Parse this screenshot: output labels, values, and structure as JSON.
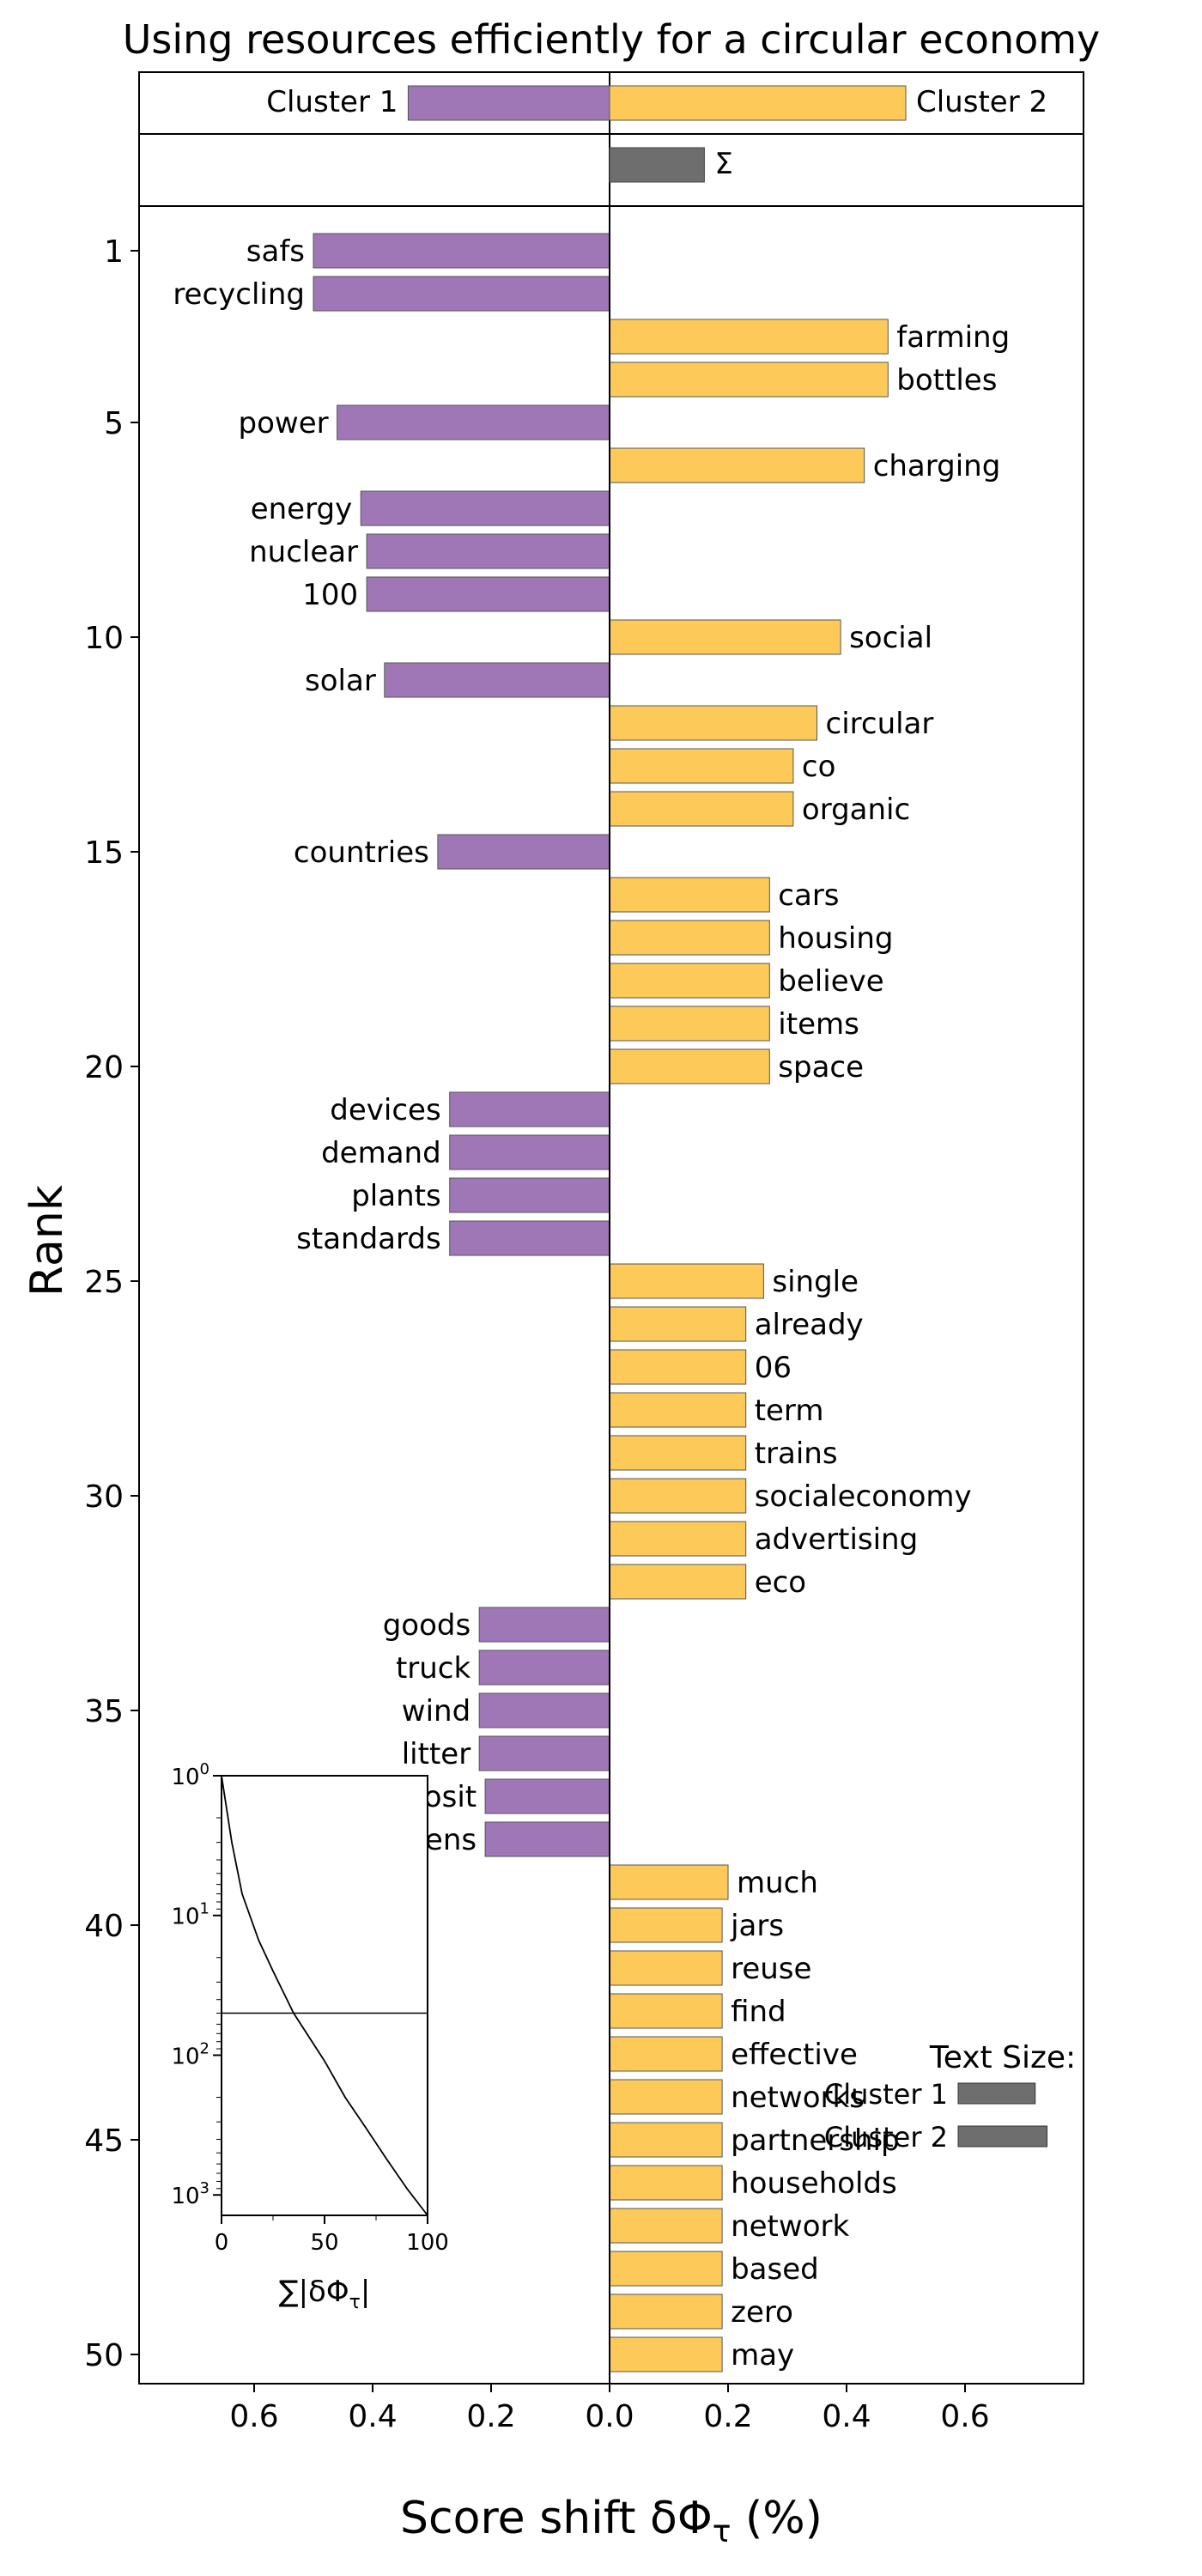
{
  "chart_data": {
    "type": "bar",
    "orientation": "horizontal",
    "title": "Using resources efficiently for a circular economy",
    "xlabel": "Score shift δΦ_τ (%)",
    "ylabel": "Rank",
    "xlim": [
      -0.8,
      0.8
    ],
    "xticks": [
      "0.6",
      "0.4",
      "0.2",
      "0.0",
      "0.2",
      "0.4",
      "0.6"
    ],
    "xtick_values": [
      -0.6,
      -0.4,
      -0.2,
      0.0,
      0.2,
      0.4,
      0.6
    ],
    "yticks": [
      "1",
      "5",
      "10",
      "15",
      "20",
      "25",
      "30",
      "35",
      "40",
      "45",
      "50"
    ],
    "ytick_values": [
      1,
      5,
      10,
      15,
      20,
      25,
      30,
      35,
      40,
      45,
      50
    ],
    "colors": {
      "cluster1": "#9f77b7",
      "cluster2": "#fdca5a",
      "sum": "#6e6e6e"
    },
    "legend_top": {
      "cluster1": "Cluster 1",
      "cluster2": "Cluster 2",
      "cluster1_value": -0.34,
      "cluster2_value": 0.5
    },
    "sum_bar": {
      "label": "Σ",
      "value": 0.16
    },
    "series": [
      {
        "rank": 1,
        "word": "safs",
        "value": -0.5
      },
      {
        "rank": 2,
        "word": "recycling",
        "value": -0.5
      },
      {
        "rank": 3,
        "word": "farming",
        "value": 0.47
      },
      {
        "rank": 4,
        "word": "bottles",
        "value": 0.47
      },
      {
        "rank": 5,
        "word": "power",
        "value": -0.46
      },
      {
        "rank": 6,
        "word": "charging",
        "value": 0.43
      },
      {
        "rank": 7,
        "word": "energy",
        "value": -0.42
      },
      {
        "rank": 8,
        "word": "nuclear",
        "value": -0.41
      },
      {
        "rank": 9,
        "word": "100",
        "value": -0.41
      },
      {
        "rank": 10,
        "word": "social",
        "value": 0.39
      },
      {
        "rank": 11,
        "word": "solar",
        "value": -0.38
      },
      {
        "rank": 12,
        "word": "circular",
        "value": 0.35
      },
      {
        "rank": 13,
        "word": "co",
        "value": 0.31
      },
      {
        "rank": 14,
        "word": "organic",
        "value": 0.31
      },
      {
        "rank": 15,
        "word": "countries",
        "value": -0.29
      },
      {
        "rank": 16,
        "word": "cars",
        "value": 0.27
      },
      {
        "rank": 17,
        "word": "housing",
        "value": 0.27
      },
      {
        "rank": 18,
        "word": "believe",
        "value": 0.27
      },
      {
        "rank": 19,
        "word": "items",
        "value": 0.27
      },
      {
        "rank": 20,
        "word": "space",
        "value": 0.27
      },
      {
        "rank": 21,
        "word": "devices",
        "value": -0.27
      },
      {
        "rank": 22,
        "word": "demand",
        "value": -0.27
      },
      {
        "rank": 23,
        "word": "plants",
        "value": -0.27
      },
      {
        "rank": 24,
        "word": "standards",
        "value": -0.27
      },
      {
        "rank": 25,
        "word": "single",
        "value": 0.26
      },
      {
        "rank": 26,
        "word": "already",
        "value": 0.23
      },
      {
        "rank": 27,
        "word": "06",
        "value": 0.23
      },
      {
        "rank": 28,
        "word": "term",
        "value": 0.23
      },
      {
        "rank": 29,
        "word": "trains",
        "value": 0.23
      },
      {
        "rank": 30,
        "word": "socialeconomy",
        "value": 0.23
      },
      {
        "rank": 31,
        "word": "advertising",
        "value": 0.23
      },
      {
        "rank": 32,
        "word": "eco",
        "value": 0.23
      },
      {
        "rank": 33,
        "word": "goods",
        "value": -0.22
      },
      {
        "rank": 34,
        "word": "truck",
        "value": -0.22
      },
      {
        "rank": 35,
        "word": "wind",
        "value": -0.22
      },
      {
        "rank": 36,
        "word": "litter",
        "value": -0.22
      },
      {
        "rank": 37,
        "word": "deposit",
        "value": -0.21
      },
      {
        "rank": 38,
        "word": "citizens",
        "value": -0.21
      },
      {
        "rank": 39,
        "word": "much",
        "value": 0.2
      },
      {
        "rank": 40,
        "word": "jars",
        "value": 0.19
      },
      {
        "rank": 41,
        "word": "reuse",
        "value": 0.19
      },
      {
        "rank": 42,
        "word": "find",
        "value": 0.19
      },
      {
        "rank": 43,
        "word": "effective",
        "value": 0.19
      },
      {
        "rank": 44,
        "word": "networks",
        "value": 0.19
      },
      {
        "rank": 45,
        "word": "partnership",
        "value": 0.19
      },
      {
        "rank": 46,
        "word": "households",
        "value": 0.19
      },
      {
        "rank": 47,
        "word": "network",
        "value": 0.19
      },
      {
        "rank": 48,
        "word": "based",
        "value": 0.19
      },
      {
        "rank": 49,
        "word": "zero",
        "value": 0.19
      },
      {
        "rank": 50,
        "word": "may",
        "value": 0.19
      }
    ],
    "inset": {
      "xlabel": "∑|δΦ_τ|",
      "xticks": [
        "0",
        "50",
        "100"
      ],
      "xtick_values": [
        0,
        50,
        100
      ],
      "yticks": [
        "10^0",
        "10^1",
        "10^2",
        "10^3"
      ],
      "ytick_values": [
        1,
        10,
        100,
        1000
      ],
      "hline_rank": 50,
      "curve_points": [
        [
          0,
          1
        ],
        [
          5,
          3
        ],
        [
          10,
          7
        ],
        [
          18,
          15
        ],
        [
          25,
          25
        ],
        [
          35,
          50
        ],
        [
          50,
          110
        ],
        [
          60,
          200
        ],
        [
          70,
          330
        ],
        [
          80,
          550
        ],
        [
          90,
          900
        ],
        [
          100,
          1400
        ]
      ]
    },
    "text_size_legend": {
      "title": "Text Size:",
      "items": [
        {
          "label": "Cluster 1",
          "value": 0.13
        },
        {
          "label": "Cluster 2",
          "value": 0.15
        }
      ]
    }
  }
}
